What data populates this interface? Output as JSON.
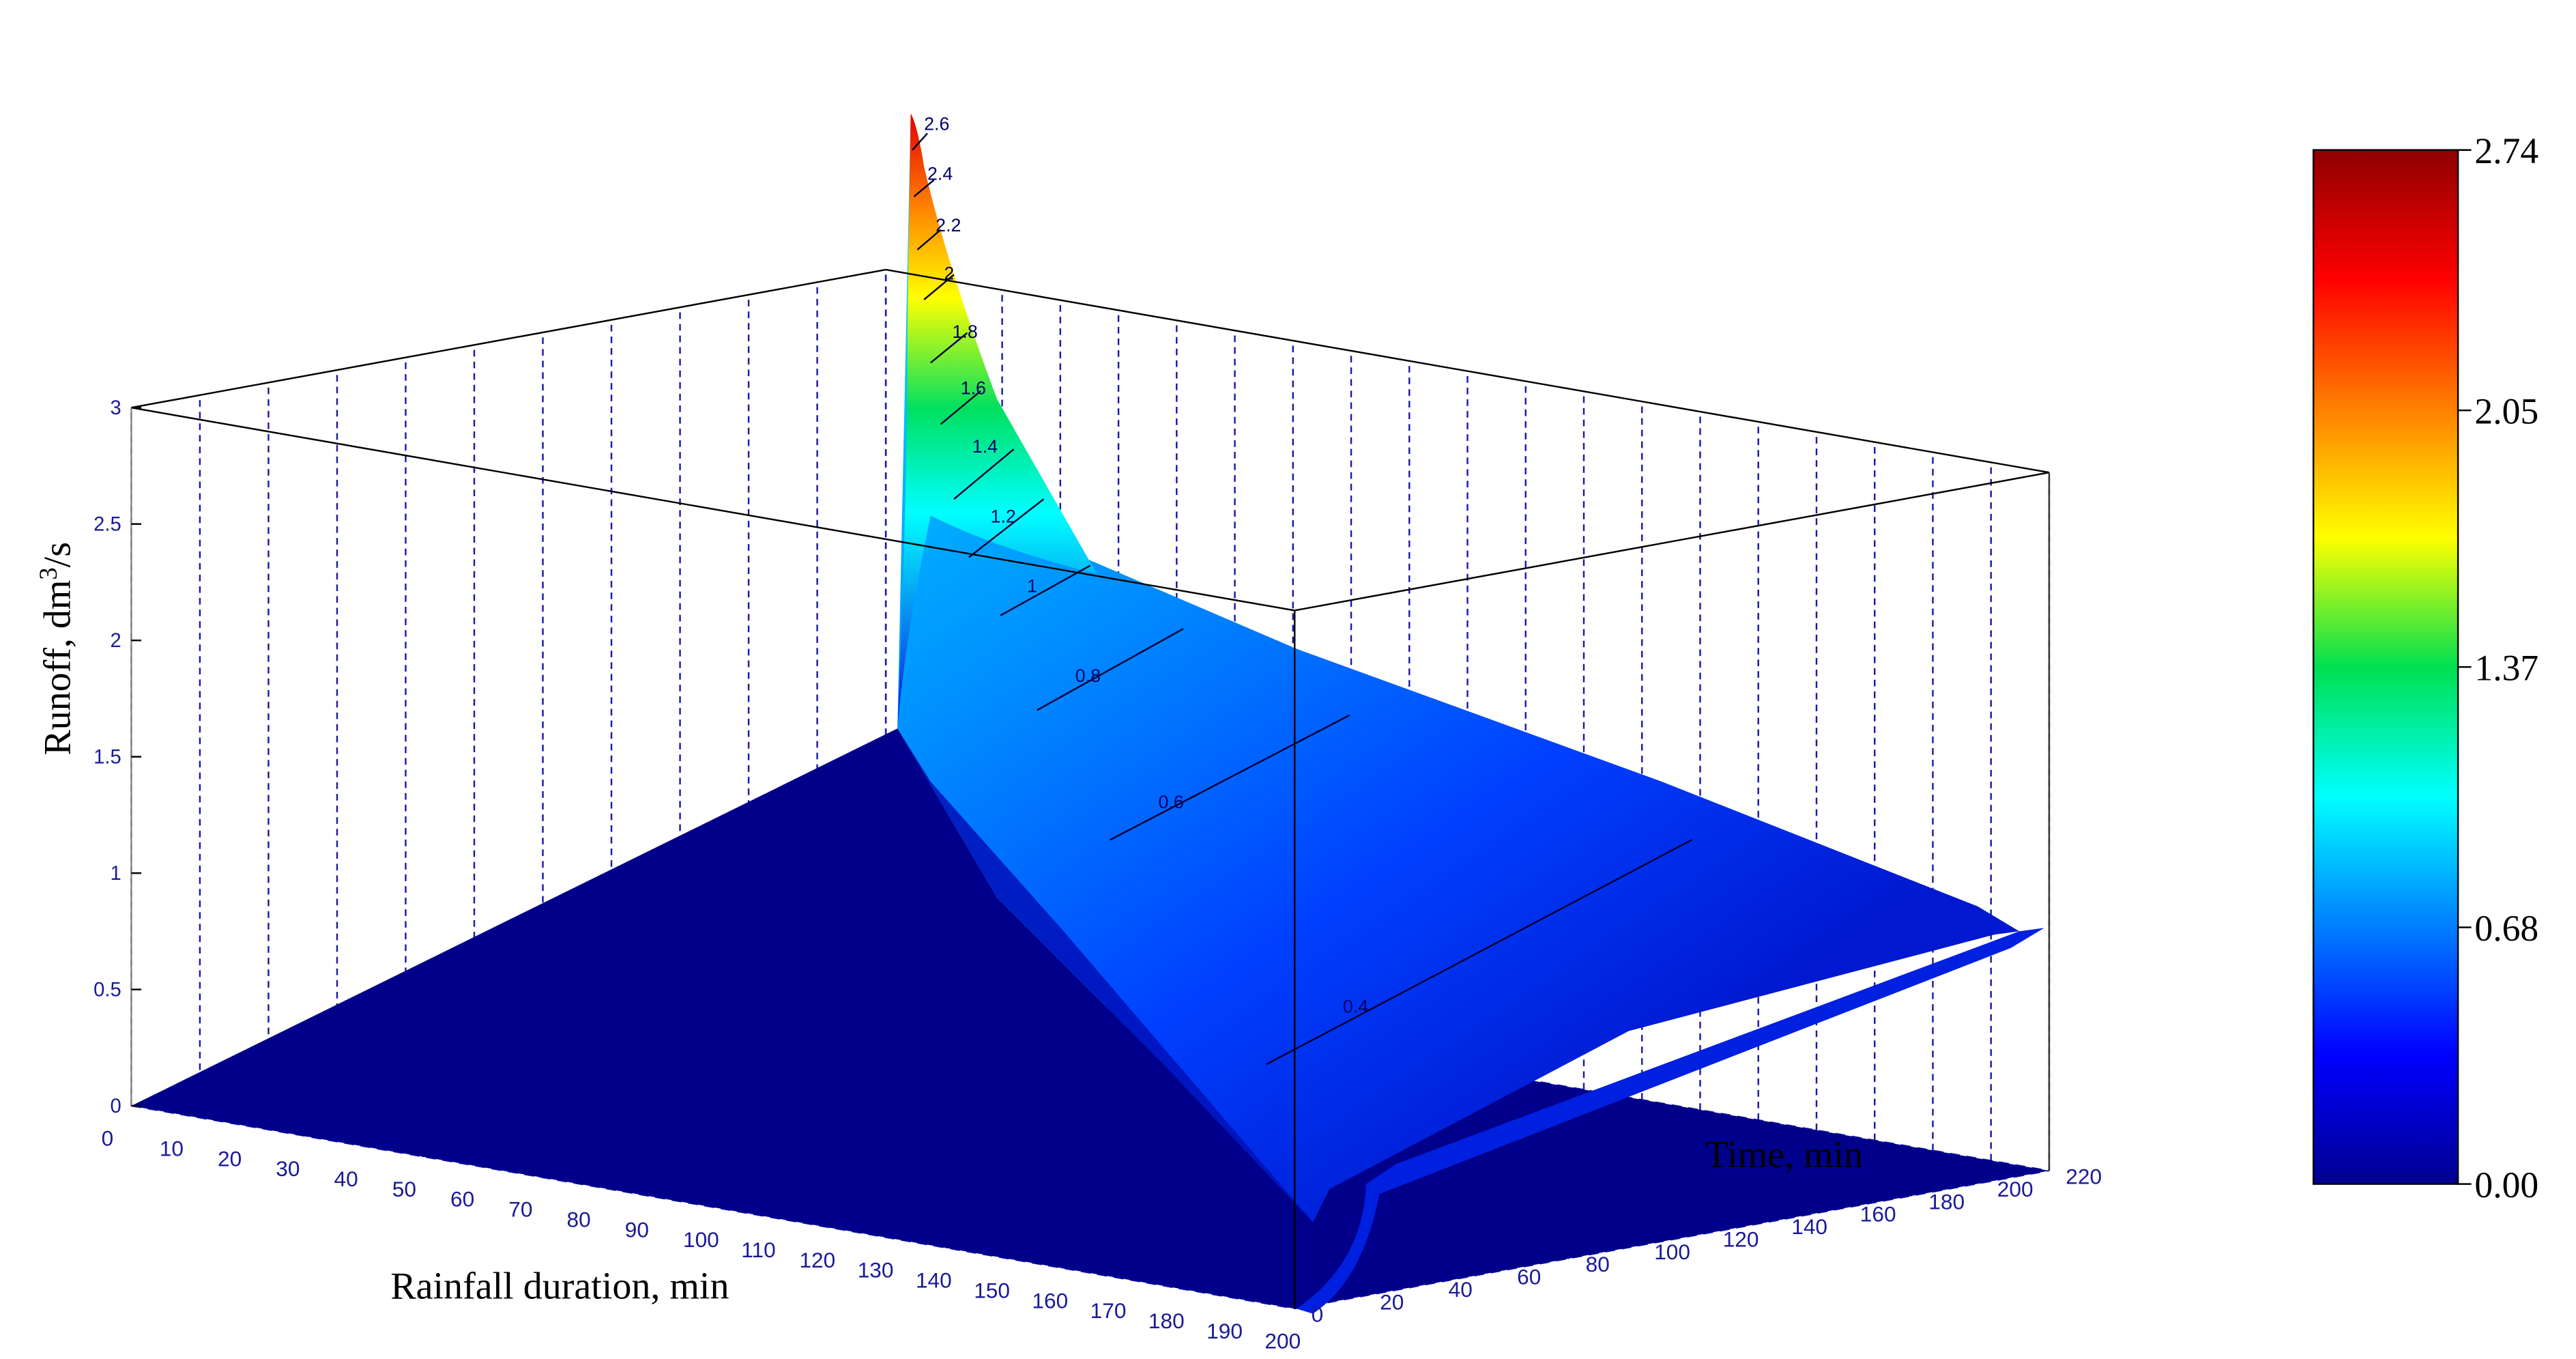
{
  "chart_data": {
    "type": "surface3d",
    "title": "",
    "zlabel_main": "Runoff, dm",
    "zlabel_sup": "3",
    "zlabel_tail": "/s",
    "xlabel": "Rainfall duration, min",
    "ylabel": "Time, min",
    "x_ticks": [
      "0",
      "10",
      "20",
      "30",
      "40",
      "50",
      "60",
      "70",
      "80",
      "90",
      "100",
      "110",
      "120",
      "130",
      "140",
      "150",
      "160",
      "170",
      "180",
      "190",
      "200"
    ],
    "y_ticks": [
      "0",
      "20",
      "40",
      "60",
      "80",
      "100",
      "120",
      "140",
      "160",
      "180",
      "200",
      "220"
    ],
    "z_ticks": [
      "0",
      "0.5",
      "1",
      "1.5",
      "2",
      "2.5",
      "3"
    ],
    "xlim": [
      0,
      200
    ],
    "ylim": [
      0,
      220
    ],
    "zlim": [
      0,
      3
    ],
    "contour_levels": [
      {
        "label": "0.4",
        "value": 0.4
      },
      {
        "label": "0.6",
        "value": 0.6
      },
      {
        "label": "0.8",
        "value": 0.8
      },
      {
        "label": "1",
        "value": 1.0
      },
      {
        "label": "1.2",
        "value": 1.2
      },
      {
        "label": "1.4",
        "value": 1.4
      },
      {
        "label": "1.6",
        "value": 1.6
      },
      {
        "label": "1.8",
        "value": 1.8
      },
      {
        "label": "2",
        "value": 2.0
      },
      {
        "label": "2.2",
        "value": 2.2
      },
      {
        "label": "2.4",
        "value": 2.4
      },
      {
        "label": "2.6",
        "value": 2.6
      }
    ],
    "peak": {
      "rainfall_duration": 10,
      "time": 10,
      "runoff": 2.74
    },
    "colorbar": {
      "min": 0.0,
      "max": 2.74,
      "ticks": [
        "2.74",
        "2.05",
        "1.37",
        "0.68",
        "0.00"
      ],
      "colormap": "jet"
    },
    "grid": true,
    "colors": {
      "grid_dashed": "#1a1aa8",
      "frame": "#000000",
      "tick_label": "#1a1a99"
    }
  }
}
